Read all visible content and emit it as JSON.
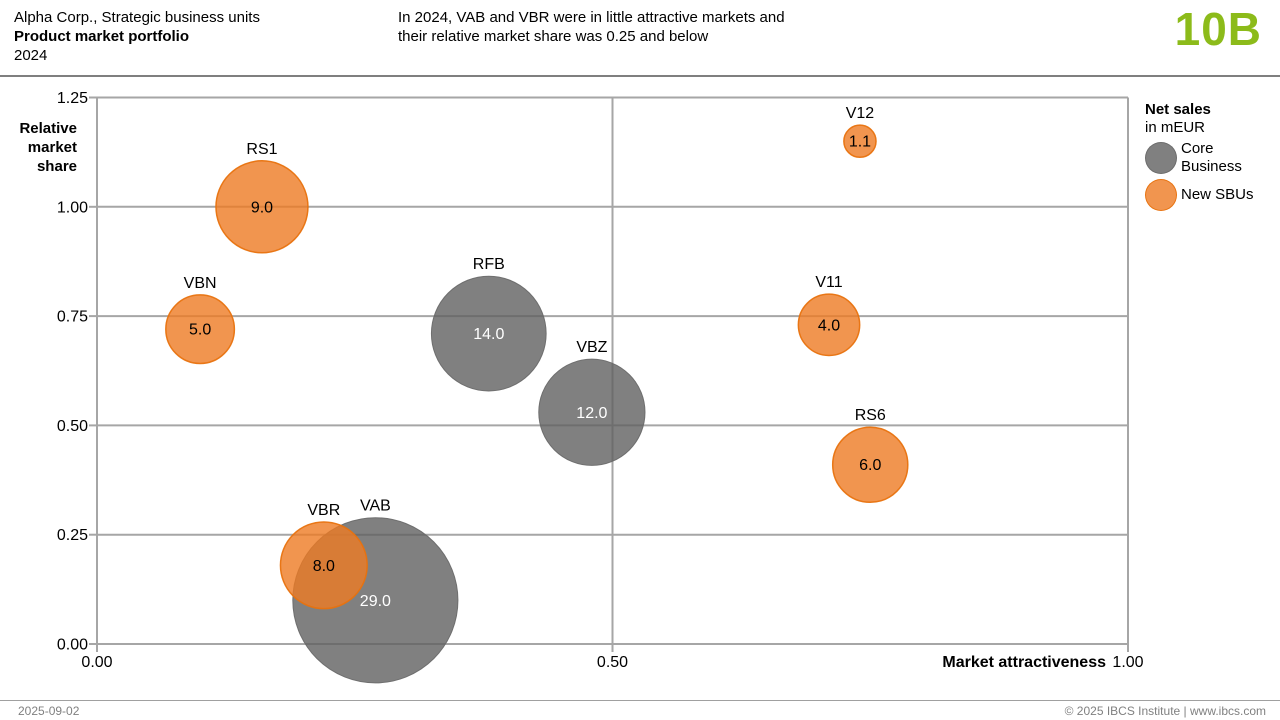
{
  "header": {
    "title_line1": "Alpha Corp., Strategic business units",
    "title_line2": "Product market portfolio",
    "title_line3": "2024",
    "message_line1": "In 2024, VAB and VBR were in little attractive markets and",
    "message_line2": "their relative market share was 0.25 and below",
    "report_id": "10B",
    "report_id_color": "#8CBB1A"
  },
  "legend": {
    "title": "Net sales",
    "subtitle": "in mEUR",
    "items": [
      {
        "series": "core",
        "label_line1": "Core",
        "label_line2": "Business"
      },
      {
        "series": "new",
        "label_line1": "New SBUs",
        "label_line2": ""
      }
    ]
  },
  "axes": {
    "y_title_line1": "Relative",
    "y_title_line2": "market",
    "y_title_line3": "share",
    "x_title": "Market attractiveness"
  },
  "chart_data": {
    "type": "scatter",
    "title": "Product market portfolio 2024",
    "xlabel": "Market attractiveness",
    "ylabel": "Relative market share",
    "size_label": "Net sales in mEUR",
    "xlim": [
      0,
      1.0
    ],
    "ylim": [
      0,
      1.25
    ],
    "grid": true,
    "x_ticks": [
      {
        "value": 0.0,
        "label": "0.00"
      },
      {
        "value": 0.5,
        "label": "0.50"
      },
      {
        "value": 1.0,
        "label": "1.00"
      }
    ],
    "y_ticks": [
      {
        "value": 0.0,
        "label": "0.00"
      },
      {
        "value": 0.25,
        "label": "0.25"
      },
      {
        "value": 0.5,
        "label": "0.50"
      },
      {
        "value": 0.75,
        "label": "0.75"
      },
      {
        "value": 1.0,
        "label": "1.00"
      },
      {
        "value": 1.25,
        "label": "1.25"
      }
    ],
    "series_styles": {
      "core": {
        "name": "Core Business",
        "fill": "#606060",
        "stroke": "#6A6A6A",
        "value_text": "#FFFFFF"
      },
      "new": {
        "name": "New SBUs",
        "fill": "#EE7B23",
        "stroke": "#E8720E",
        "value_text": "#000000"
      }
    },
    "points": [
      {
        "label": "RS1",
        "x": 0.16,
        "y": 1.0,
        "value": 9.0,
        "value_label": "9.0",
        "series": "new"
      },
      {
        "label": "VBN",
        "x": 0.1,
        "y": 0.72,
        "value": 5.0,
        "value_label": "5.0",
        "series": "new"
      },
      {
        "label": "RFB",
        "x": 0.38,
        "y": 0.71,
        "value": 14.0,
        "value_label": "14.0",
        "series": "core"
      },
      {
        "label": "VBZ",
        "x": 0.48,
        "y": 0.53,
        "value": 12.0,
        "value_label": "12.0",
        "series": "core"
      },
      {
        "label": "VAB",
        "x": 0.27,
        "y": 0.1,
        "value": 29.0,
        "value_label": "29.0",
        "series": "core"
      },
      {
        "label": "VBR",
        "x": 0.22,
        "y": 0.18,
        "value": 8.0,
        "value_label": "8.0",
        "series": "new"
      },
      {
        "label": "V12",
        "x": 0.74,
        "y": 1.15,
        "value": 1.1,
        "value_label": "1.1",
        "series": "new"
      },
      {
        "label": "V11",
        "x": 0.71,
        "y": 0.73,
        "value": 4.0,
        "value_label": "4.0",
        "series": "new"
      },
      {
        "label": "RS6",
        "x": 0.75,
        "y": 0.41,
        "value": 6.0,
        "value_label": "6.0",
        "series": "new"
      }
    ]
  },
  "footer": {
    "date": "2025-09-02",
    "copyright": "© 2025 IBCS Institute | www.ibcs.com"
  }
}
